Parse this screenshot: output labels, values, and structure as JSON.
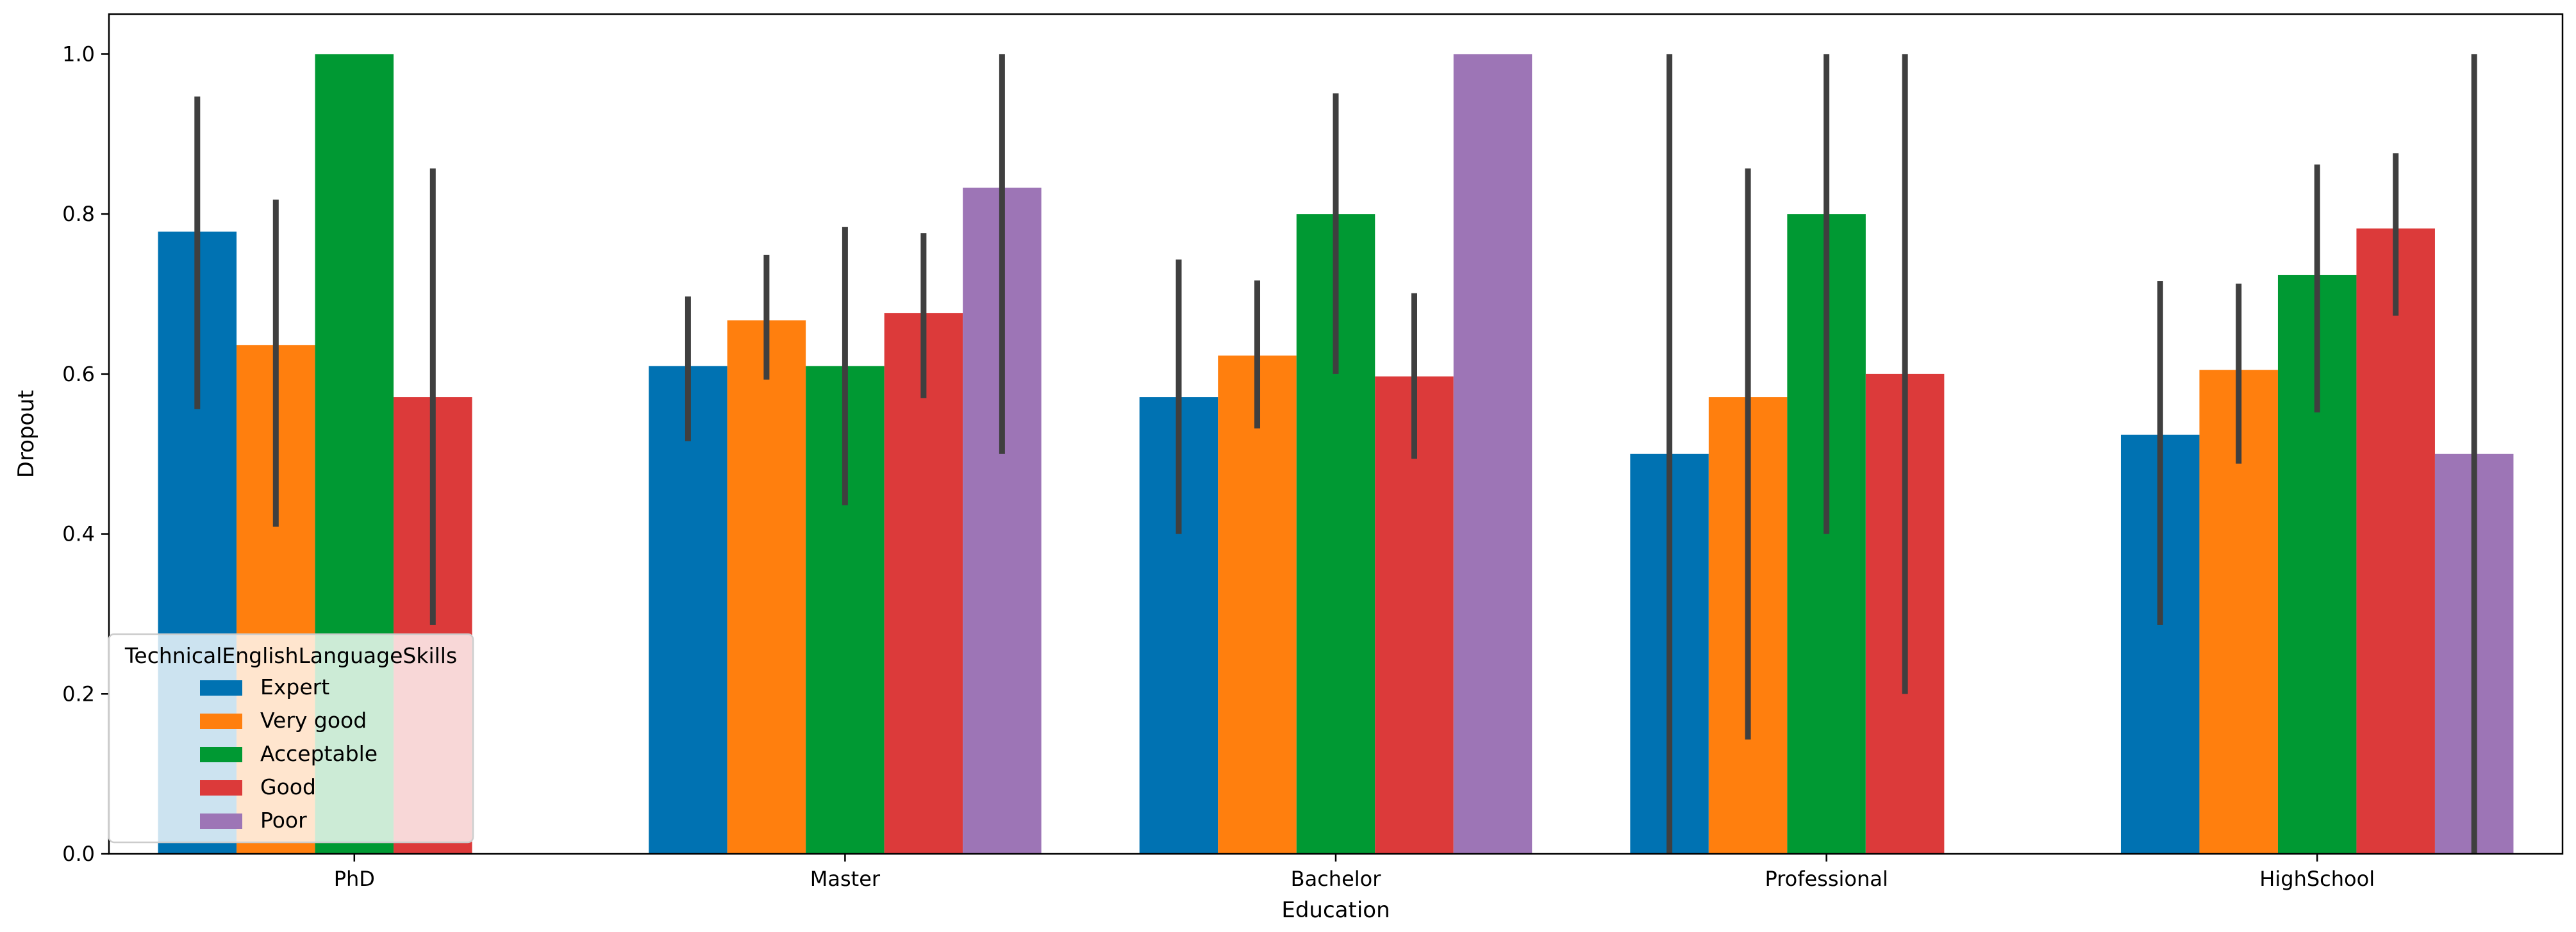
{
  "chart_data": {
    "type": "bar",
    "title": "",
    "xlabel": "Education",
    "ylabel": "Dropout",
    "ylim": [
      0,
      1.05
    ],
    "yticks": [
      "0.0",
      "0.2",
      "0.4",
      "0.6",
      "0.8",
      "1.0"
    ],
    "ytick_values": [
      0,
      0.2,
      0.4,
      0.6,
      0.8,
      1.0
    ],
    "categories": [
      "PhD",
      "Master",
      "Bachelor",
      "Professional",
      "HighSchool"
    ],
    "legend": {
      "title": "TechnicalEnglishLanguageSkills",
      "placement": "lower-left"
    },
    "series": [
      {
        "name": "Expert",
        "color": "#0072b2",
        "values": [
          0.778,
          0.61,
          0.571,
          0.5,
          0.524
        ],
        "err_low": [
          0.556,
          0.516,
          0.4,
          0.0,
          0.286
        ],
        "err_high": [
          0.947,
          0.697,
          0.743,
          1.0,
          0.716
        ]
      },
      {
        "name": "Very good",
        "color": "#ff7f0e",
        "values": [
          0.636,
          0.667,
          0.623,
          0.571,
          0.605
        ],
        "err_low": [
          0.409,
          0.593,
          0.532,
          0.143,
          0.488
        ],
        "err_high": [
          0.818,
          0.749,
          0.717,
          0.857,
          0.713
        ]
      },
      {
        "name": "Acceptable",
        "color": "#009933",
        "values": [
          1.0,
          0.61,
          0.8,
          0.8,
          0.724
        ],
        "err_low": [
          1.0,
          0.436,
          0.6,
          0.4,
          0.552
        ],
        "err_high": [
          1.0,
          0.784,
          0.951,
          1.0,
          0.862
        ]
      },
      {
        "name": "Good",
        "color": "#dc3a3a",
        "values": [
          0.571,
          0.676,
          0.597,
          0.6,
          0.782
        ],
        "err_low": [
          0.286,
          0.57,
          0.494,
          0.2,
          0.673
        ],
        "err_high": [
          0.857,
          0.776,
          0.701,
          1.0,
          0.876
        ]
      },
      {
        "name": "Poor",
        "color": "#9d75b6",
        "values": [
          null,
          0.833,
          1.0,
          null,
          0.5
        ],
        "err_low": [
          null,
          0.5,
          1.0,
          null,
          0.0
        ],
        "err_high": [
          null,
          1.0,
          1.0,
          null,
          1.0
        ]
      }
    ]
  }
}
